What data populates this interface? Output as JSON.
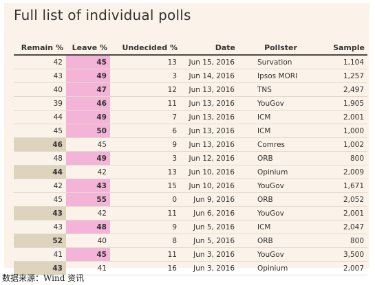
{
  "title": "Full list of individual polls",
  "source": "数据来源：Wind 资讯",
  "colors": {
    "card_bg": "#fbf3ea",
    "remain_highlight": "#ded4bd",
    "leave_highlight": "#f3b4d7"
  },
  "columns": [
    "Remain %",
    "Leave %",
    "Undecided %",
    "Date",
    "Pollster",
    "Sample"
  ],
  "rows": [
    {
      "remain": "42",
      "leave": "45",
      "undecided": "13",
      "date": "Jun 15, 2016",
      "pollster": "Survation",
      "sample": "1,104",
      "lead": "leave"
    },
    {
      "remain": "43",
      "leave": "49",
      "undecided": "3",
      "date": "Jun 14, 2016",
      "pollster": "Ipsos MORI",
      "sample": "1,257",
      "lead": "leave"
    },
    {
      "remain": "40",
      "leave": "47",
      "undecided": "12",
      "date": "Jun 13, 2016",
      "pollster": "TNS",
      "sample": "2,497",
      "lead": "leave"
    },
    {
      "remain": "39",
      "leave": "46",
      "undecided": "11",
      "date": "Jun 13, 2016",
      "pollster": "YouGov",
      "sample": "1,905",
      "lead": "leave"
    },
    {
      "remain": "44",
      "leave": "49",
      "undecided": "7",
      "date": "Jun 13, 2016",
      "pollster": "ICM",
      "sample": "2,001",
      "lead": "leave"
    },
    {
      "remain": "45",
      "leave": "50",
      "undecided": "6",
      "date": "Jun 13, 2016",
      "pollster": "ICM",
      "sample": "1,000",
      "lead": "leave"
    },
    {
      "remain": "46",
      "leave": "45",
      "undecided": "9",
      "date": "Jun 13, 2016",
      "pollster": "Comres",
      "sample": "1,002",
      "lead": "remain"
    },
    {
      "remain": "48",
      "leave": "49",
      "undecided": "3",
      "date": "Jun 12, 2016",
      "pollster": "ORB",
      "sample": "800",
      "lead": "leave"
    },
    {
      "remain": "44",
      "leave": "42",
      "undecided": "13",
      "date": "Jun 10, 2016",
      "pollster": "Opinium",
      "sample": "2,009",
      "lead": "remain"
    },
    {
      "remain": "42",
      "leave": "43",
      "undecided": "15",
      "date": "Jun 10, 2016",
      "pollster": "YouGov",
      "sample": "1,671",
      "lead": "leave"
    },
    {
      "remain": "45",
      "leave": "55",
      "undecided": "0",
      "date": "Jun 9, 2016",
      "pollster": "ORB",
      "sample": "2,052",
      "lead": "leave"
    },
    {
      "remain": "43",
      "leave": "42",
      "undecided": "11",
      "date": "Jun 6, 2016",
      "pollster": "YouGov",
      "sample": "2,001",
      "lead": "remain"
    },
    {
      "remain": "43",
      "leave": "48",
      "undecided": "9",
      "date": "Jun 5, 2016",
      "pollster": "ICM",
      "sample": "2,047",
      "lead": "leave"
    },
    {
      "remain": "52",
      "leave": "40",
      "undecided": "8",
      "date": "Jun 5, 2016",
      "pollster": "ORB",
      "sample": "800",
      "lead": "remain"
    },
    {
      "remain": "41",
      "leave": "45",
      "undecided": "11",
      "date": "Jun 3, 2016",
      "pollster": "YouGov",
      "sample": "3,500",
      "lead": "leave"
    },
    {
      "remain": "43",
      "leave": "41",
      "undecided": "16",
      "date": "Jun 3, 2016",
      "pollster": "Opinium",
      "sample": "2,007",
      "lead": "remain"
    }
  ]
}
